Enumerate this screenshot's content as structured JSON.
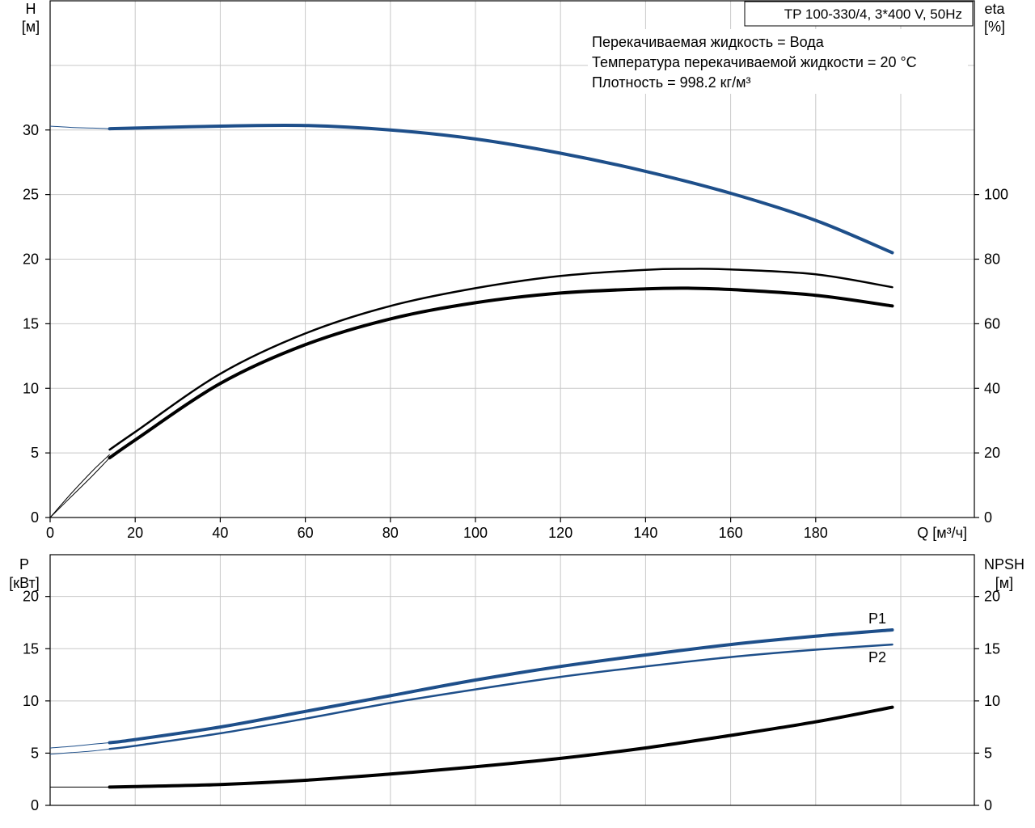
{
  "header": {
    "pump_label": "TP 100-330/4, 3*400 V, 50Hz",
    "info_lines": [
      "Перекачиваемая жидкость = Вода",
      "Температура перекачиваемой жидкости = 20 °C",
      "Плотность = 998.2 кг/м³"
    ]
  },
  "chart_data": [
    {
      "type": "line",
      "left_axis": {
        "label_line1": "H",
        "label_line2": "[м]",
        "ylim": [
          0,
          40
        ],
        "ticks": [
          "0",
          "5",
          "10",
          "15",
          "20",
          "25",
          "30"
        ]
      },
      "right_axis": {
        "label_line1": "eta",
        "label_line2": "[%]",
        "ylim": [
          0,
          160
        ],
        "ticks": [
          "0",
          "20",
          "40",
          "60",
          "80",
          "100"
        ]
      },
      "x_axis": {
        "label": "Q [м³/ч]",
        "xlim": [
          0,
          200
        ],
        "ticks": [
          "0",
          "20",
          "40",
          "60",
          "80",
          "100",
          "120",
          "140",
          "160",
          "180"
        ]
      },
      "grid": true,
      "series": [
        {
          "axis": "left",
          "color": "#1e4f8a",
          "thin_x": [
            0,
            5,
            10,
            14
          ],
          "thin_y": [
            30.3,
            30.2,
            30.15,
            30.1
          ],
          "x": [
            14,
            20,
            40,
            60,
            80,
            100,
            120,
            140,
            160,
            180,
            198
          ],
          "y": [
            30.1,
            30.15,
            30.3,
            30.35,
            30.0,
            29.3,
            28.2,
            26.8,
            25.1,
            23.0,
            20.5
          ]
        },
        {
          "axis": "right",
          "color": "#000000",
          "thin_x": [
            0,
            5,
            10,
            14
          ],
          "thin_y": [
            0,
            7.5,
            14.5,
            19.5
          ],
          "x": [
            14,
            20,
            40,
            60,
            80,
            100,
            120,
            140,
            150,
            160,
            180,
            198
          ],
          "y": [
            21.0,
            26.5,
            44.5,
            57.0,
            65.5,
            71.0,
            74.8,
            76.7,
            77.0,
            76.8,
            75.3,
            71.3
          ]
        },
        {
          "axis": "right",
          "color": "#000000",
          "thin_x": [
            0,
            5,
            10,
            14
          ],
          "thin_y": [
            0,
            6.5,
            13.0,
            18.5
          ],
          "x": [
            14,
            20,
            40,
            60,
            80,
            100,
            120,
            140,
            150,
            160,
            180,
            198
          ],
          "y": [
            18.5,
            24.0,
            41.5,
            53.5,
            61.5,
            66.5,
            69.5,
            70.8,
            71.0,
            70.6,
            68.8,
            65.5
          ]
        }
      ]
    },
    {
      "type": "line",
      "left_axis": {
        "label_line1": "P",
        "label_line2": "[кВт]",
        "ylim": [
          0,
          24
        ],
        "ticks": [
          "0",
          "5",
          "10",
          "15",
          "20"
        ]
      },
      "right_axis": {
        "label_line1": "NPSH",
        "label_line2": "[м]",
        "ylim": [
          0,
          24
        ],
        "ticks": [
          "0",
          "5",
          "10",
          "15",
          "20"
        ]
      },
      "x_axis": {
        "xlim": [
          0,
          200
        ]
      },
      "grid": true,
      "series": [
        {
          "name": "P1",
          "axis": "left",
          "color": "#1e4f8a",
          "thin_x": [
            0,
            5,
            10,
            14
          ],
          "thin_y": [
            5.5,
            5.65,
            5.85,
            6.0
          ],
          "x": [
            14,
            20,
            40,
            60,
            80,
            100,
            120,
            140,
            160,
            180,
            198
          ],
          "y": [
            6.0,
            6.3,
            7.5,
            9.0,
            10.5,
            12.0,
            13.3,
            14.4,
            15.4,
            16.2,
            16.8
          ]
        },
        {
          "name": "P2",
          "axis": "left",
          "color": "#1e4f8a",
          "thin_x": [
            0,
            5,
            10,
            14
          ],
          "thin_y": [
            4.9,
            5.05,
            5.2,
            5.4
          ],
          "x": [
            14,
            20,
            40,
            60,
            80,
            100,
            120,
            140,
            160,
            180,
            198
          ],
          "y": [
            5.4,
            5.7,
            6.9,
            8.3,
            9.8,
            11.1,
            12.3,
            13.3,
            14.2,
            14.9,
            15.4
          ]
        },
        {
          "axis": "right",
          "color": "#000000",
          "thin_x": [
            0,
            5,
            10,
            14
          ],
          "thin_y": [
            1.75,
            1.75,
            1.75,
            1.75
          ],
          "x": [
            14,
            20,
            40,
            60,
            80,
            100,
            120,
            140,
            160,
            180,
            198
          ],
          "y": [
            1.75,
            1.8,
            2.0,
            2.4,
            3.0,
            3.7,
            4.5,
            5.5,
            6.7,
            8.0,
            9.4
          ]
        }
      ]
    }
  ]
}
